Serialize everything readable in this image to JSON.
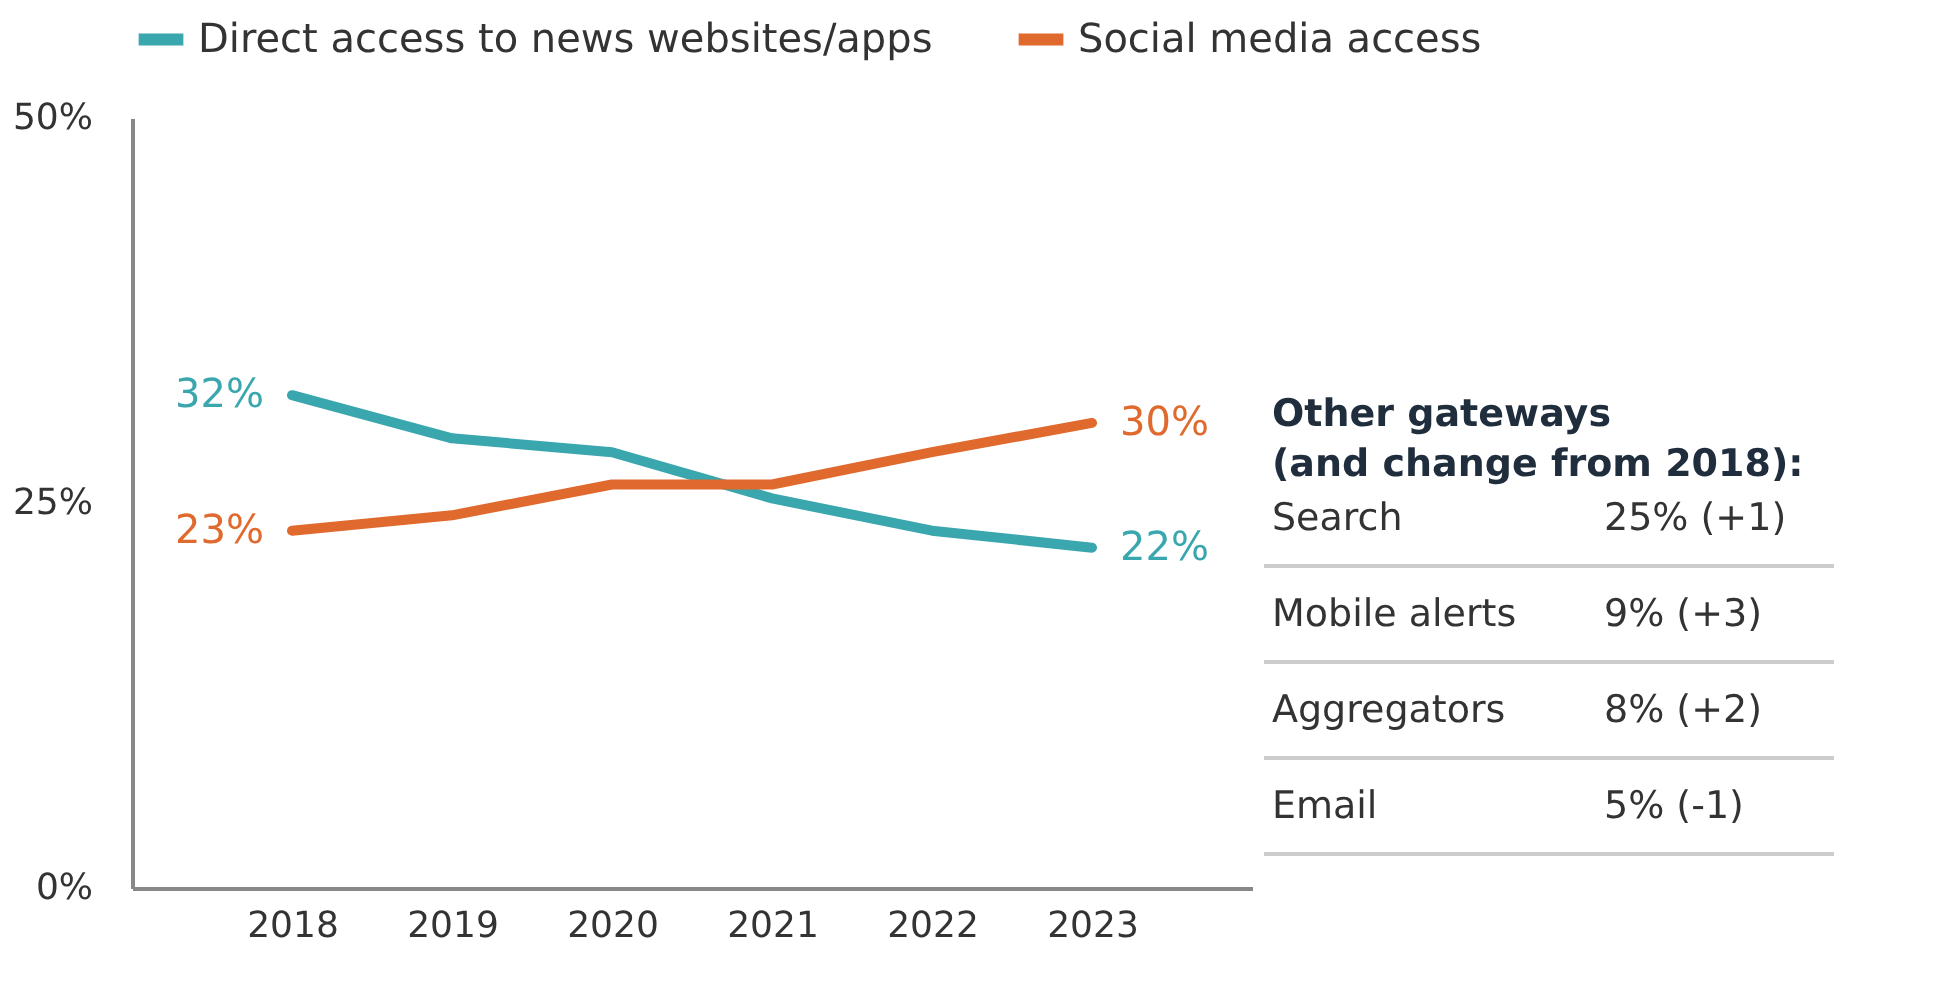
{
  "chart_data": {
    "type": "line",
    "categories": [
      "2018",
      "2019",
      "2020",
      "2021",
      "2022",
      "2023"
    ],
    "series": [
      {
        "name": "Direct access to news websites/apps",
        "color": "#3aa6ad",
        "values": [
          32,
          29.2,
          28.3,
          25.3,
          23.2,
          22.1
        ],
        "value_labels": [
          "32%",
          null,
          null,
          null,
          null,
          "22%"
        ]
      },
      {
        "name": "Social media access",
        "color": "#e0692d",
        "values": [
          23.2,
          24.2,
          26.2,
          26.2,
          28.3,
          30.2
        ],
        "value_labels": [
          "23%",
          null,
          null,
          null,
          null,
          "30%"
        ]
      }
    ],
    "ylim": [
      0,
      50
    ],
    "yticks": [
      {
        "value": 0,
        "label": "0%"
      },
      {
        "value": 25,
        "label": "25%"
      },
      {
        "value": 50,
        "label": "50%"
      }
    ],
    "grid": false,
    "legend": "top",
    "marker": "none",
    "line_style": "solid",
    "annotations": [
      "Other gateways",
      "(and change from 2018):",
      "Search",
      "25% (+1)",
      "Mobile alerts",
      "9% (+3)",
      "Aggregators",
      "8% (+2)",
      "Email",
      "5% (-1)"
    ]
  }
}
